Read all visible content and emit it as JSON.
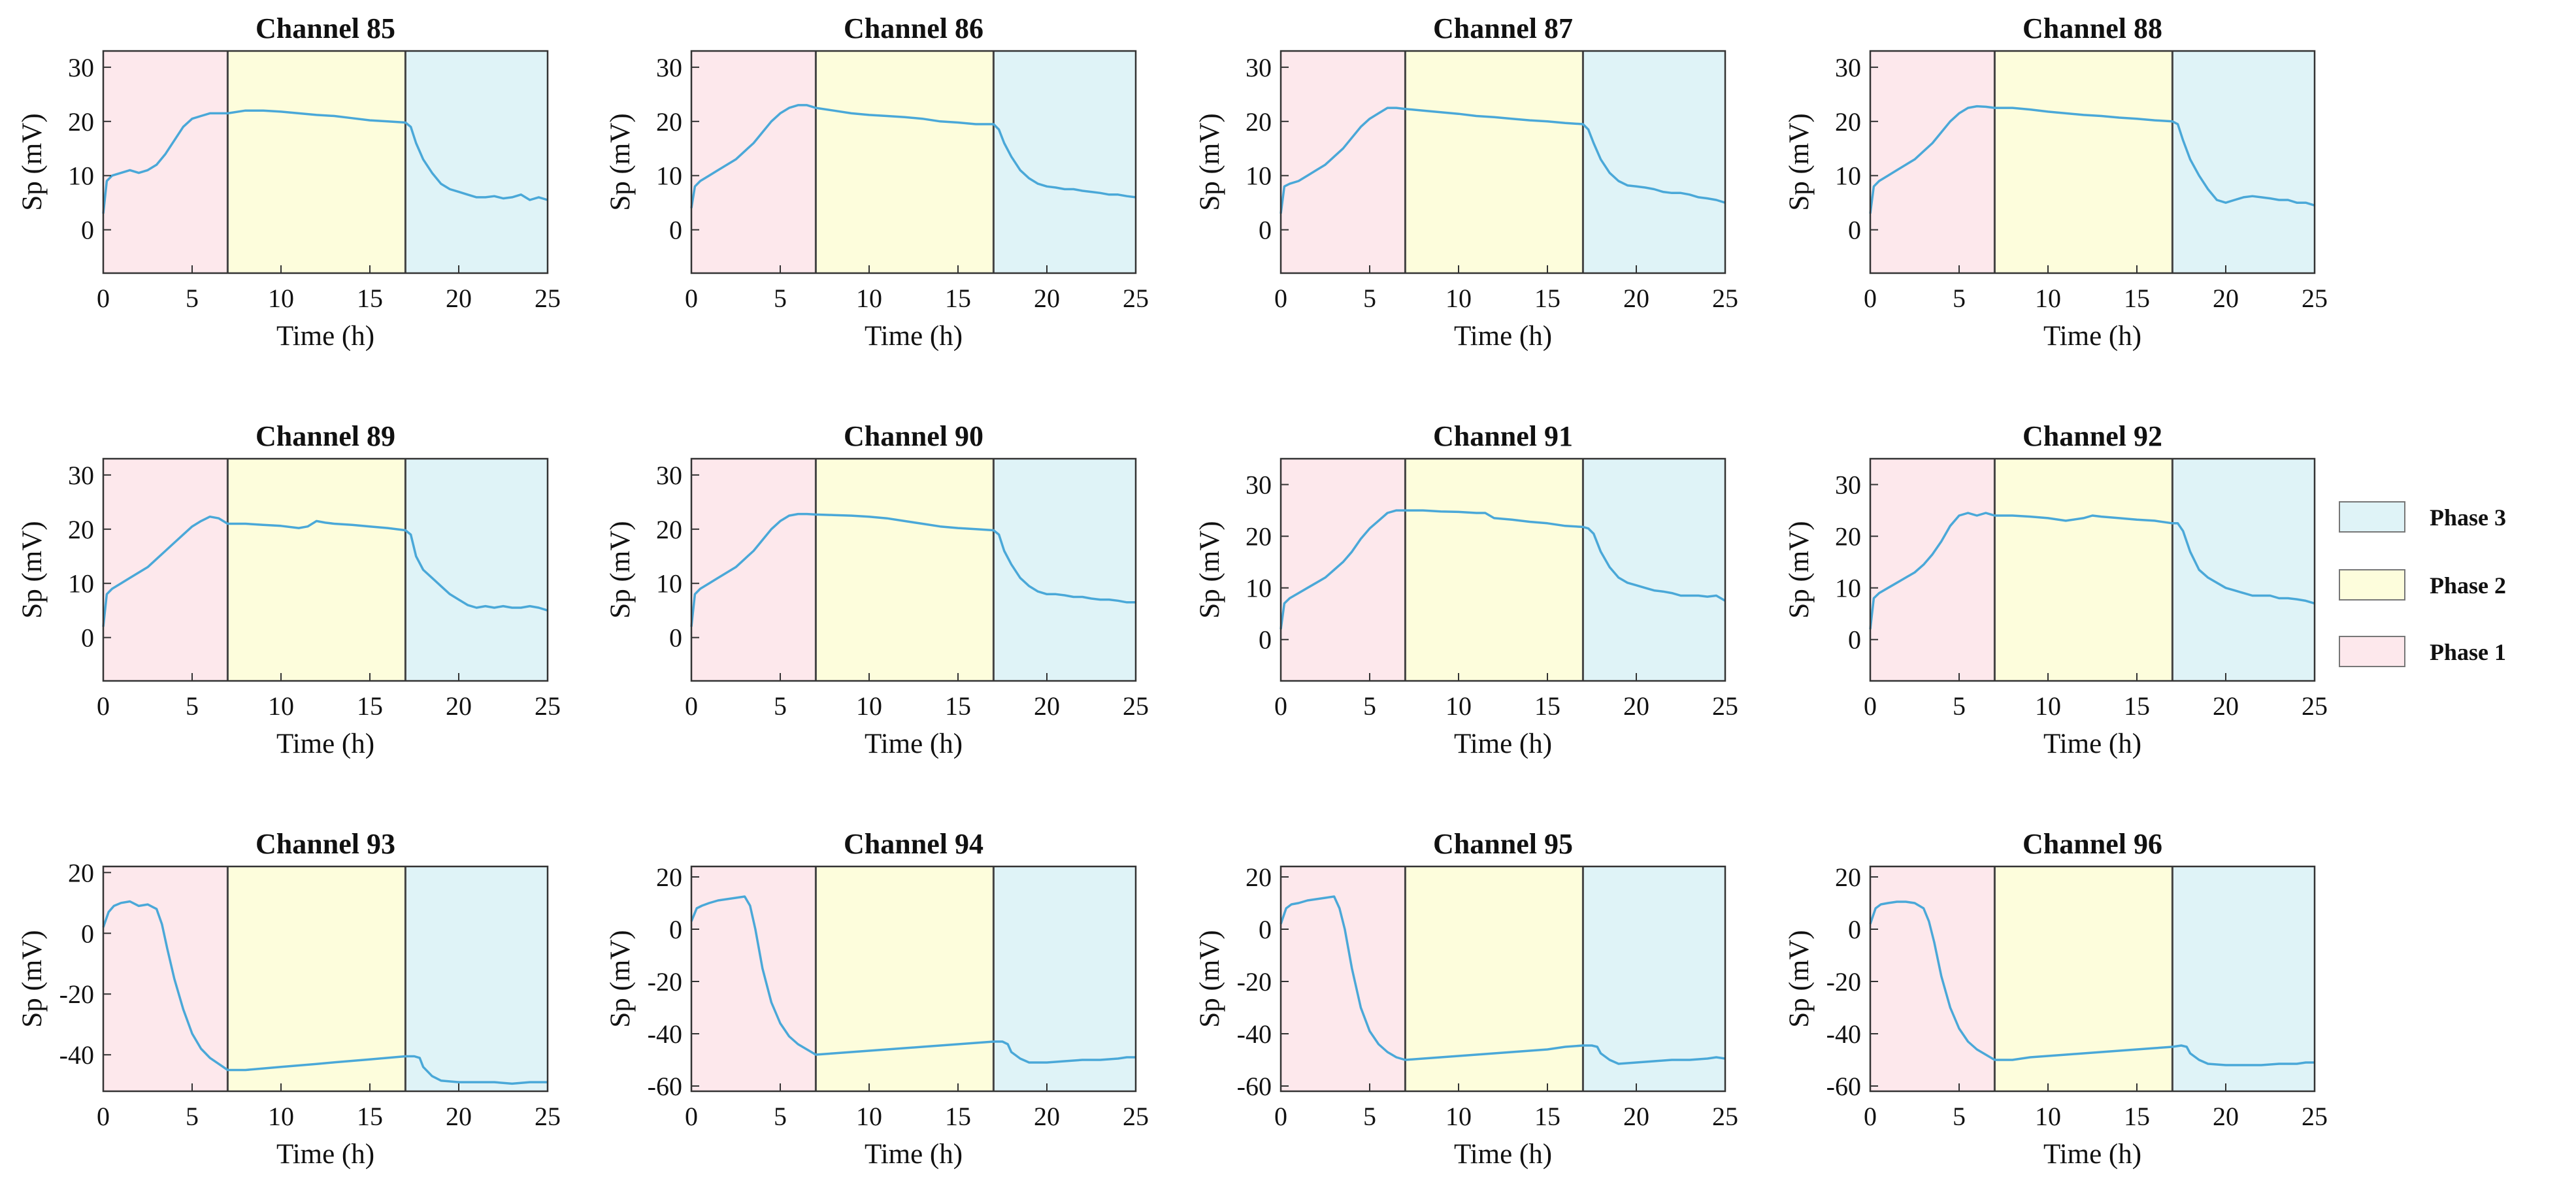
{
  "figure": {
    "x_axis_label": "Time (h)",
    "y_axis_label": "Sp (mV)",
    "x_ticks": [
      0,
      5,
      10,
      15,
      20,
      25
    ],
    "xlim": [
      0,
      25
    ],
    "phase_boundaries_h": [
      0,
      7,
      17,
      25
    ]
  },
  "legend": {
    "position": "right",
    "items": [
      {
        "label": "Phase 3",
        "color": "#dff3f7"
      },
      {
        "label": "Phase 2",
        "color": "#fdfddc"
      },
      {
        "label": "Phase 1",
        "color": "#fde8ec"
      }
    ]
  },
  "colors": {
    "line": "#4aa8d8",
    "phase1": "#fde8ec",
    "phase2": "#fdfddc",
    "phase3": "#dff3f7",
    "boundary": "#444444"
  },
  "chart_data": [
    {
      "type": "line",
      "title": "Channel 85",
      "xlabel": "Time (h)",
      "ylabel": "Sp (mV)",
      "xlim": [
        0,
        25
      ],
      "ylim": [
        -8,
        33
      ],
      "yticks": [
        0,
        10,
        20,
        30
      ],
      "x": [
        0,
        0.2,
        0.5,
        1,
        1.5,
        2,
        2.5,
        3,
        3.5,
        4,
        4.5,
        5,
        5.5,
        6,
        6.5,
        7,
        8,
        9,
        10,
        11,
        12,
        13,
        14,
        15,
        16,
        17,
        17.3,
        17.6,
        18,
        18.5,
        19,
        19.5,
        20,
        20.5,
        21,
        21.5,
        22,
        22.5,
        23,
        23.5,
        24,
        24.5,
        25
      ],
      "y": [
        3,
        9,
        10,
        10.5,
        11,
        10.5,
        11,
        12,
        14,
        16.5,
        19,
        20.5,
        21,
        21.5,
        21.5,
        21.5,
        22,
        22,
        21.8,
        21.5,
        21.2,
        21,
        20.6,
        20.2,
        20,
        19.8,
        19,
        16,
        13,
        10.5,
        8.5,
        7.5,
        7,
        6.5,
        6,
        6,
        6.2,
        5.8,
        6,
        6.5,
        5.5,
        6,
        5.5
      ]
    },
    {
      "type": "line",
      "title": "Channel 86",
      "xlabel": "Time (h)",
      "ylabel": "Sp (mV)",
      "xlim": [
        0,
        25
      ],
      "ylim": [
        -8,
        33
      ],
      "yticks": [
        0,
        10,
        20,
        30
      ],
      "x": [
        0,
        0.2,
        0.5,
        1,
        1.5,
        2,
        2.5,
        3,
        3.5,
        4,
        4.5,
        5,
        5.5,
        6,
        6.5,
        7,
        8,
        9,
        10,
        11,
        12,
        13,
        14,
        15,
        16,
        17,
        17.3,
        17.6,
        18,
        18.5,
        19,
        19.5,
        20,
        20.5,
        21,
        21.5,
        22,
        22.5,
        23,
        23.5,
        24,
        24.5,
        25
      ],
      "y": [
        4,
        8,
        9,
        10,
        11,
        12,
        13,
        14.5,
        16,
        18,
        20,
        21.5,
        22.5,
        23,
        23,
        22.5,
        22,
        21.5,
        21.2,
        21,
        20.8,
        20.5,
        20,
        19.8,
        19.5,
        19.5,
        18.5,
        16,
        13.5,
        11,
        9.5,
        8.5,
        8,
        7.8,
        7.5,
        7.5,
        7.2,
        7,
        6.8,
        6.5,
        6.5,
        6.2,
        6
      ]
    },
    {
      "type": "line",
      "title": "Channel 87",
      "xlabel": "Time (h)",
      "ylabel": "Sp (mV)",
      "xlim": [
        0,
        25
      ],
      "ylim": [
        -8,
        33
      ],
      "yticks": [
        0,
        10,
        20,
        30
      ],
      "x": [
        0,
        0.2,
        0.5,
        1,
        1.5,
        2,
        2.5,
        3,
        3.5,
        4,
        4.5,
        5,
        5.5,
        6,
        6.5,
        7,
        8,
        9,
        10,
        11,
        12,
        13,
        14,
        15,
        16,
        17,
        17.3,
        17.6,
        18,
        18.5,
        19,
        19.5,
        20,
        20.5,
        21,
        21.5,
        22,
        22.5,
        23,
        23.5,
        24,
        24.5,
        25
      ],
      "y": [
        3,
        8,
        8.5,
        9,
        10,
        11,
        12,
        13.5,
        15,
        17,
        19,
        20.5,
        21.5,
        22.5,
        22.5,
        22.3,
        22,
        21.7,
        21.4,
        21,
        20.8,
        20.5,
        20.2,
        20,
        19.7,
        19.5,
        18.5,
        16,
        13,
        10.5,
        9,
        8.2,
        8,
        7.8,
        7.5,
        7,
        6.8,
        6.8,
        6.5,
        6,
        5.8,
        5.5,
        5
      ]
    },
    {
      "type": "line",
      "title": "Channel 88",
      "xlabel": "Time (h)",
      "ylabel": "Sp (mV)",
      "xlim": [
        0,
        25
      ],
      "ylim": [
        -8,
        33
      ],
      "yticks": [
        0,
        10,
        20,
        30
      ],
      "x": [
        0,
        0.2,
        0.5,
        1,
        1.5,
        2,
        2.5,
        3,
        3.5,
        4,
        4.5,
        5,
        5.5,
        6,
        6.5,
        7,
        8,
        9,
        10,
        11,
        12,
        13,
        14,
        15,
        16,
        17,
        17.3,
        17.6,
        18,
        18.5,
        19,
        19.5,
        20,
        20.5,
        21,
        21.5,
        22,
        22.5,
        23,
        23.5,
        24,
        24.5,
        25
      ],
      "y": [
        3,
        8,
        9,
        10,
        11,
        12,
        13,
        14.5,
        16,
        18,
        20,
        21.5,
        22.5,
        22.8,
        22.7,
        22.5,
        22.5,
        22.2,
        21.8,
        21.5,
        21.2,
        21,
        20.7,
        20.5,
        20.2,
        20,
        19.5,
        16.5,
        13,
        10,
        7.5,
        5.5,
        5,
        5.5,
        6,
        6.2,
        6,
        5.8,
        5.5,
        5.5,
        5,
        5,
        4.5
      ]
    },
    {
      "type": "line",
      "title": "Channel 89",
      "xlabel": "Time (h)",
      "ylabel": "Sp (mV)",
      "xlim": [
        0,
        25
      ],
      "ylim": [
        -8,
        33
      ],
      "yticks": [
        0,
        10,
        20,
        30
      ],
      "x": [
        0,
        0.2,
        0.5,
        1,
        1.5,
        2,
        2.5,
        3,
        3.5,
        4,
        4.5,
        5,
        5.5,
        6,
        6.5,
        7,
        8,
        9,
        10,
        11,
        11.5,
        12,
        12.5,
        13,
        14,
        15,
        16,
        17,
        17.3,
        17.6,
        18,
        18.5,
        19,
        19.5,
        20,
        20.5,
        21,
        21.5,
        22,
        22.5,
        23,
        23.5,
        24,
        24.5,
        25
      ],
      "y": [
        2,
        8,
        9,
        10,
        11,
        12,
        13,
        14.5,
        16,
        17.5,
        19,
        20.5,
        21.5,
        22.3,
        22,
        21,
        21,
        20.8,
        20.6,
        20.2,
        20.5,
        21.5,
        21.2,
        21,
        20.8,
        20.5,
        20.2,
        19.8,
        19,
        15,
        12.5,
        11,
        9.5,
        8,
        7,
        6,
        5.5,
        5.8,
        5.5,
        5.8,
        5.5,
        5.5,
        5.8,
        5.5,
        5
      ]
    },
    {
      "type": "line",
      "title": "Channel 90",
      "xlabel": "Time (h)",
      "ylabel": "Sp (mV)",
      "xlim": [
        0,
        25
      ],
      "ylim": [
        -8,
        33
      ],
      "yticks": [
        0,
        10,
        20,
        30
      ],
      "x": [
        0,
        0.2,
        0.5,
        1,
        1.5,
        2,
        2.5,
        3,
        3.5,
        4,
        4.5,
        5,
        5.5,
        6,
        6.5,
        7,
        8,
        9,
        10,
        11,
        12,
        13,
        14,
        15,
        16,
        17,
        17.3,
        17.6,
        18,
        18.5,
        19,
        19.5,
        20,
        20.5,
        21,
        21.5,
        22,
        22.5,
        23,
        23.5,
        24,
        24.5,
        25
      ],
      "y": [
        2,
        8,
        9,
        10,
        11,
        12,
        13,
        14.5,
        16,
        18,
        20,
        21.5,
        22.5,
        22.8,
        22.8,
        22.7,
        22.6,
        22.5,
        22.3,
        22,
        21.5,
        21,
        20.5,
        20.2,
        20,
        19.8,
        19,
        16,
        13.5,
        11,
        9.5,
        8.5,
        8,
        8,
        7.8,
        7.5,
        7.5,
        7.2,
        7,
        7,
        6.8,
        6.5,
        6.5
      ]
    },
    {
      "type": "line",
      "title": "Channel 91",
      "xlabel": "Time (h)",
      "ylabel": "Sp (mV)",
      "xlim": [
        0,
        25
      ],
      "ylim": [
        -8,
        35
      ],
      "yticks": [
        0,
        10,
        20,
        30
      ],
      "x": [
        0,
        0.2,
        0.5,
        1,
        1.5,
        2,
        2.5,
        3,
        3.5,
        4,
        4.5,
        5,
        5.5,
        6,
        6.5,
        7,
        8,
        9,
        10,
        11,
        11.5,
        12,
        13,
        14,
        15,
        16,
        17,
        17.3,
        17.6,
        18,
        18.5,
        19,
        19.5,
        20,
        20.5,
        21,
        21.5,
        22,
        22.5,
        23,
        23.5,
        24,
        24.5,
        25
      ],
      "y": [
        2,
        7,
        8,
        9,
        10,
        11,
        12,
        13.5,
        15,
        17,
        19.5,
        21.5,
        23,
        24.5,
        25,
        25,
        25,
        24.8,
        24.7,
        24.5,
        24.5,
        23.5,
        23.2,
        22.8,
        22.5,
        22,
        21.8,
        21.5,
        20.5,
        17,
        14,
        12,
        11,
        10.5,
        10,
        9.5,
        9.3,
        9,
        8.5,
        8.5,
        8.5,
        8.3,
        8.5,
        7.5
      ]
    },
    {
      "type": "line",
      "title": "Channel 92",
      "xlabel": "Time (h)",
      "ylabel": "Sp (mV)",
      "xlim": [
        0,
        25
      ],
      "ylim": [
        -8,
        35
      ],
      "yticks": [
        0,
        10,
        20,
        30
      ],
      "x": [
        0,
        0.2,
        0.5,
        1,
        1.5,
        2,
        2.5,
        3,
        3.5,
        4,
        4.5,
        5,
        5.5,
        6,
        6.5,
        7,
        8,
        9,
        10,
        11,
        12,
        12.5,
        13,
        14,
        15,
        16,
        17,
        17.3,
        17.6,
        18,
        18.5,
        19,
        19.5,
        20,
        20.5,
        21,
        21.5,
        22,
        22.5,
        23,
        23.5,
        24,
        24.5,
        25
      ],
      "y": [
        2,
        8,
        9,
        10,
        11,
        12,
        13,
        14.5,
        16.5,
        19,
        22,
        24,
        24.5,
        24,
        24.5,
        24,
        24,
        23.8,
        23.5,
        23,
        23.5,
        24,
        23.8,
        23.5,
        23.2,
        23,
        22.5,
        22.5,
        21,
        17,
        13.5,
        12,
        11,
        10,
        9.5,
        9,
        8.5,
        8.5,
        8.5,
        8,
        8,
        7.8,
        7.5,
        7
      ]
    },
    {
      "type": "line",
      "title": "Channel 93",
      "xlabel": "Time (h)",
      "ylabel": "Sp (mV)",
      "xlim": [
        0,
        25
      ],
      "ylim": [
        -52,
        22
      ],
      "yticks": [
        -40,
        -20,
        0,
        20
      ],
      "x": [
        0,
        0.3,
        0.6,
        1,
        1.5,
        2,
        2.5,
        3,
        3.3,
        3.6,
        4,
        4.5,
        5,
        5.5,
        6,
        6.5,
        7,
        8,
        9,
        10,
        11,
        12,
        13,
        14,
        15,
        16,
        17,
        17.5,
        17.8,
        18,
        18.5,
        19,
        20,
        21,
        22,
        23,
        24,
        24.5,
        25
      ],
      "y": [
        2,
        7,
        9,
        10,
        10.5,
        9,
        9.5,
        8,
        3,
        -5,
        -15,
        -25,
        -33,
        -38,
        -41,
        -43,
        -45,
        -45,
        -44.5,
        -44,
        -43.5,
        -43,
        -42.5,
        -42,
        -41.5,
        -41,
        -40.5,
        -40.5,
        -41,
        -44,
        -47,
        -48.5,
        -49,
        -49,
        -49,
        -49.5,
        -49,
        -49,
        -49
      ]
    },
    {
      "type": "line",
      "title": "Channel 94",
      "xlabel": "Time (h)",
      "ylabel": "Sp (mV)",
      "xlim": [
        0,
        25
      ],
      "ylim": [
        -62,
        24
      ],
      "yticks": [
        -60,
        -40,
        -20,
        0,
        20
      ],
      "x": [
        0,
        0.3,
        0.6,
        1,
        1.5,
        2,
        2.5,
        3,
        3.3,
        3.6,
        4,
        4.5,
        5,
        5.5,
        6,
        6.5,
        7,
        8,
        9,
        10,
        11,
        12,
        13,
        14,
        15,
        16,
        17,
        17.5,
        17.8,
        18,
        18.5,
        19,
        20,
        21,
        22,
        23,
        24,
        24.5,
        25
      ],
      "y": [
        3,
        8,
        9,
        10,
        11,
        11.5,
        12,
        12.5,
        9,
        0,
        -15,
        -28,
        -36,
        -41,
        -44,
        -46,
        -48,
        -47.5,
        -47,
        -46.5,
        -46,
        -45.5,
        -45,
        -44.5,
        -44,
        -43.5,
        -43,
        -43,
        -44,
        -47,
        -49.5,
        -51,
        -51,
        -50.5,
        -50,
        -50,
        -49.5,
        -49,
        -49
      ]
    },
    {
      "type": "line",
      "title": "Channel 95",
      "xlabel": "Time (h)",
      "ylabel": "Sp (mV)",
      "xlim": [
        0,
        25
      ],
      "ylim": [
        -62,
        24
      ],
      "yticks": [
        -60,
        -40,
        -20,
        0,
        20
      ],
      "x": [
        0,
        0.3,
        0.6,
        1,
        1.5,
        2,
        2.5,
        3,
        3.3,
        3.6,
        4,
        4.5,
        5,
        5.5,
        6,
        6.5,
        7,
        8,
        9,
        10,
        11,
        12,
        13,
        14,
        15,
        16,
        17,
        17.5,
        17.8,
        18,
        18.5,
        19,
        20,
        21,
        22,
        23,
        24,
        24.5,
        25
      ],
      "y": [
        2,
        8,
        9.5,
        10,
        11,
        11.5,
        12,
        12.5,
        8,
        0,
        -15,
        -30,
        -39,
        -44,
        -47,
        -49,
        -50,
        -49.5,
        -49,
        -48.5,
        -48,
        -47.5,
        -47,
        -46.5,
        -46,
        -45,
        -44.5,
        -44.5,
        -45,
        -47.5,
        -50,
        -51.5,
        -51,
        -50.5,
        -50,
        -50,
        -49.5,
        -49,
        -49.5
      ]
    },
    {
      "type": "line",
      "title": "Channel 96",
      "xlabel": "Time (h)",
      "ylabel": "Sp (mV)",
      "xlim": [
        0,
        25
      ],
      "ylim": [
        -62,
        24
      ],
      "yticks": [
        -60,
        -40,
        -20,
        0,
        20
      ],
      "x": [
        0,
        0.3,
        0.6,
        1,
        1.5,
        2,
        2.5,
        3,
        3.3,
        3.6,
        4,
        4.5,
        5,
        5.5,
        6,
        6.5,
        7,
        8,
        9,
        10,
        11,
        12,
        13,
        14,
        15,
        16,
        17,
        17.5,
        17.8,
        18,
        18.5,
        19,
        20,
        21,
        22,
        23,
        24,
        24.5,
        25
      ],
      "y": [
        2,
        8,
        9.5,
        10,
        10.5,
        10.5,
        10,
        8,
        3,
        -5,
        -18,
        -30,
        -38,
        -43,
        -46,
        -48,
        -50,
        -50,
        -49,
        -48.5,
        -48,
        -47.5,
        -47,
        -46.5,
        -46,
        -45.5,
        -45,
        -44.5,
        -45,
        -47.5,
        -50,
        -51.5,
        -52,
        -52,
        -52,
        -51.5,
        -51.5,
        -51,
        -51
      ]
    }
  ]
}
